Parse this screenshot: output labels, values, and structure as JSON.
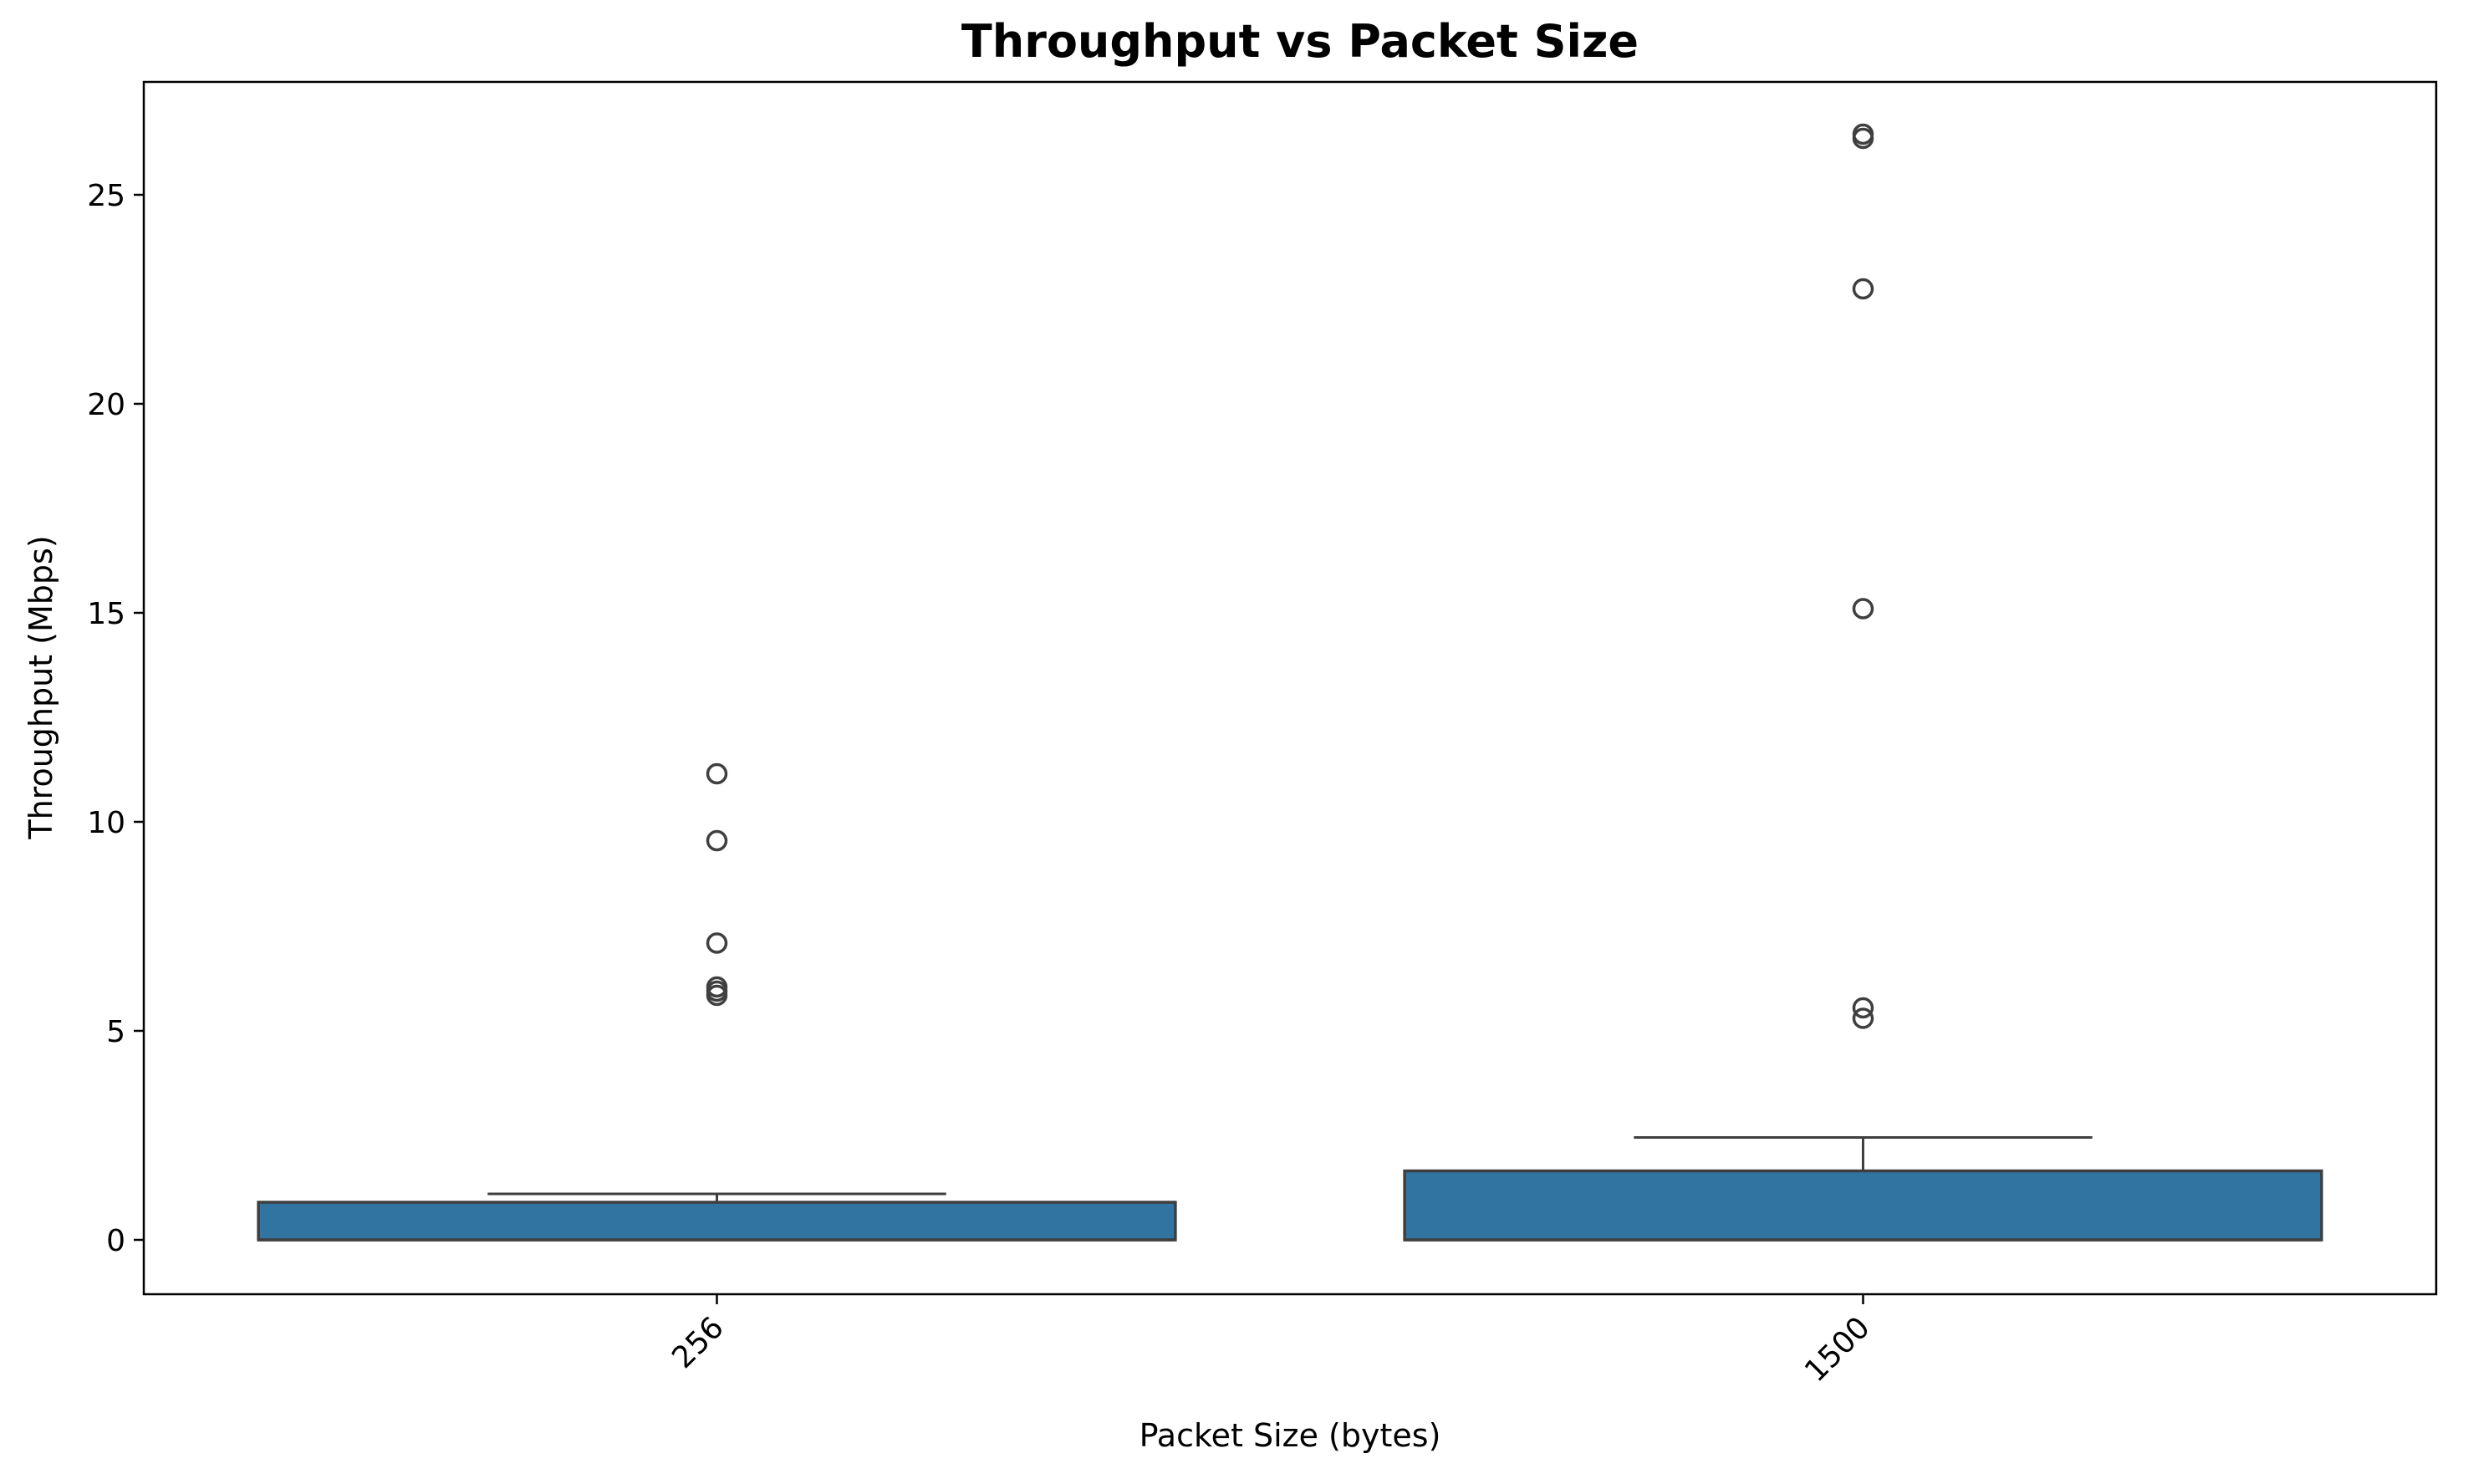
{
  "chart_data": {
    "type": "box",
    "title": "Throughput vs Packet Size",
    "xlabel": "Packet Size (bytes)",
    "ylabel": "Throughput (Mbps)",
    "categories": [
      "256",
      "1500"
    ],
    "ylim": [
      -1.3,
      27.7
    ],
    "yticks": [
      0,
      5,
      10,
      15,
      20,
      25
    ],
    "ytick_labels": [
      "0",
      "5",
      "10",
      "15",
      "20",
      "25"
    ],
    "xtick_rotation": -45,
    "grid": false,
    "legend": "none",
    "box_color": "#3274a1",
    "edge_color": "#3f3f3f",
    "boxes": [
      {
        "category": "256",
        "whisker_low": 0,
        "q1": 0,
        "median": 0,
        "q3": 0.9,
        "whisker_high": 1.1,
        "outliers": [
          11.15,
          9.55,
          7.1,
          6.05,
          5.95,
          5.85
        ]
      },
      {
        "category": "1500",
        "whisker_low": 0,
        "q1": 0,
        "median": 0,
        "q3": 1.65,
        "whisker_high": 2.45,
        "outliers": [
          26.45,
          26.35,
          22.75,
          15.1,
          5.55,
          5.3
        ]
      }
    ]
  }
}
